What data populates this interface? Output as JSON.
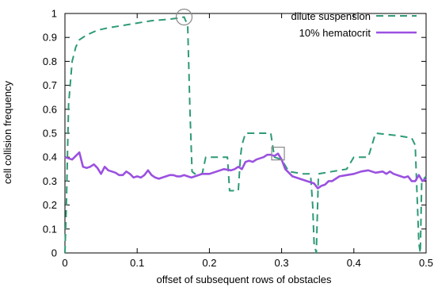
{
  "chart_data": {
    "type": "line",
    "xlabel": "offset of subsequent rows of obstacles",
    "ylabel": "cell collision frequency",
    "xlim": [
      0,
      0.5
    ],
    "ylim": [
      0,
      1
    ],
    "x_ticks": [
      "0",
      "0.1",
      "0.2",
      "0.3",
      "0.4",
      "0.5"
    ],
    "y_ticks": [
      "0",
      "0.1",
      "0.2",
      "0.3",
      "0.4",
      "0.5",
      "0.6",
      "0.7",
      "0.8",
      "0.9",
      "1"
    ],
    "legend_position": "top-right",
    "grid": false,
    "series": [
      {
        "name": "dilute suspension",
        "color": "#2e9a78",
        "style": "dashed",
        "points": [
          [
            0.0,
            0.0
          ],
          [
            0.002,
            0.2
          ],
          [
            0.005,
            0.62
          ],
          [
            0.01,
            0.8
          ],
          [
            0.015,
            0.86
          ],
          [
            0.02,
            0.89
          ],
          [
            0.03,
            0.91
          ],
          [
            0.045,
            0.93
          ],
          [
            0.06,
            0.94
          ],
          [
            0.08,
            0.95
          ],
          [
            0.1,
            0.96
          ],
          [
            0.12,
            0.97
          ],
          [
            0.14,
            0.975
          ],
          [
            0.155,
            0.98
          ],
          [
            0.165,
            0.985
          ],
          [
            0.17,
            0.95
          ],
          [
            0.173,
            0.6
          ],
          [
            0.176,
            0.34
          ],
          [
            0.18,
            0.33
          ],
          [
            0.19,
            0.33
          ],
          [
            0.195,
            0.4
          ],
          [
            0.225,
            0.4
          ],
          [
            0.228,
            0.26
          ],
          [
            0.24,
            0.26
          ],
          [
            0.243,
            0.4
          ],
          [
            0.245,
            0.45
          ],
          [
            0.25,
            0.5
          ],
          [
            0.285,
            0.5
          ],
          [
            0.29,
            0.4
          ],
          [
            0.3,
            0.39
          ],
          [
            0.31,
            0.34
          ],
          [
            0.33,
            0.33
          ],
          [
            0.34,
            0.33
          ],
          [
            0.343,
            0.2
          ],
          [
            0.345,
            0.04
          ],
          [
            0.348,
            0.0
          ],
          [
            0.351,
            0.33
          ],
          [
            0.37,
            0.34
          ],
          [
            0.39,
            0.35
          ],
          [
            0.4,
            0.4
          ],
          [
            0.42,
            0.4
          ],
          [
            0.425,
            0.45
          ],
          [
            0.43,
            0.5
          ],
          [
            0.46,
            0.49
          ],
          [
            0.48,
            0.48
          ],
          [
            0.485,
            0.45
          ],
          [
            0.488,
            0.2
          ],
          [
            0.49,
            0.04
          ],
          [
            0.492,
            0.0
          ],
          [
            0.494,
            0.3
          ],
          [
            0.5,
            0.32
          ]
        ]
      },
      {
        "name": "10% hematocrit",
        "color": "#9b51e0",
        "style": "solid",
        "points": [
          [
            0.0,
            0.4
          ],
          [
            0.01,
            0.39
          ],
          [
            0.02,
            0.42
          ],
          [
            0.025,
            0.36
          ],
          [
            0.03,
            0.355
          ],
          [
            0.035,
            0.36
          ],
          [
            0.04,
            0.37
          ],
          [
            0.045,
            0.355
          ],
          [
            0.05,
            0.33
          ],
          [
            0.055,
            0.36
          ],
          [
            0.06,
            0.345
          ],
          [
            0.065,
            0.34
          ],
          [
            0.07,
            0.335
          ],
          [
            0.075,
            0.325
          ],
          [
            0.08,
            0.325
          ],
          [
            0.085,
            0.34
          ],
          [
            0.09,
            0.33
          ],
          [
            0.095,
            0.315
          ],
          [
            0.1,
            0.32
          ],
          [
            0.105,
            0.315
          ],
          [
            0.11,
            0.325
          ],
          [
            0.115,
            0.345
          ],
          [
            0.12,
            0.325
          ],
          [
            0.125,
            0.315
          ],
          [
            0.13,
            0.31
          ],
          [
            0.135,
            0.315
          ],
          [
            0.14,
            0.32
          ],
          [
            0.145,
            0.325
          ],
          [
            0.15,
            0.325
          ],
          [
            0.155,
            0.32
          ],
          [
            0.16,
            0.32
          ],
          [
            0.165,
            0.325
          ],
          [
            0.17,
            0.32
          ],
          [
            0.175,
            0.315
          ],
          [
            0.18,
            0.32
          ],
          [
            0.19,
            0.33
          ],
          [
            0.2,
            0.33
          ],
          [
            0.21,
            0.34
          ],
          [
            0.215,
            0.345
          ],
          [
            0.22,
            0.35
          ],
          [
            0.23,
            0.345
          ],
          [
            0.235,
            0.35
          ],
          [
            0.24,
            0.36
          ],
          [
            0.245,
            0.35
          ],
          [
            0.25,
            0.38
          ],
          [
            0.255,
            0.385
          ],
          [
            0.26,
            0.38
          ],
          [
            0.265,
            0.39
          ],
          [
            0.27,
            0.395
          ],
          [
            0.275,
            0.4
          ],
          [
            0.28,
            0.41
          ],
          [
            0.285,
            0.41
          ],
          [
            0.29,
            0.405
          ],
          [
            0.295,
            0.415
          ],
          [
            0.3,
            0.39
          ],
          [
            0.305,
            0.35
          ],
          [
            0.31,
            0.335
          ],
          [
            0.315,
            0.32
          ],
          [
            0.32,
            0.315
          ],
          [
            0.325,
            0.31
          ],
          [
            0.33,
            0.305
          ],
          [
            0.335,
            0.3
          ],
          [
            0.34,
            0.295
          ],
          [
            0.345,
            0.29
          ],
          [
            0.35,
            0.27
          ],
          [
            0.355,
            0.28
          ],
          [
            0.36,
            0.285
          ],
          [
            0.365,
            0.3
          ],
          [
            0.37,
            0.3
          ],
          [
            0.375,
            0.31
          ],
          [
            0.38,
            0.32
          ],
          [
            0.39,
            0.325
          ],
          [
            0.4,
            0.33
          ],
          [
            0.41,
            0.34
          ],
          [
            0.42,
            0.345
          ],
          [
            0.43,
            0.335
          ],
          [
            0.44,
            0.34
          ],
          [
            0.445,
            0.33
          ],
          [
            0.45,
            0.34
          ],
          [
            0.455,
            0.33
          ],
          [
            0.46,
            0.325
          ],
          [
            0.465,
            0.32
          ],
          [
            0.47,
            0.315
          ],
          [
            0.475,
            0.32
          ],
          [
            0.48,
            0.3
          ],
          [
            0.485,
            0.3
          ],
          [
            0.49,
            0.325
          ],
          [
            0.495,
            0.3
          ],
          [
            0.5,
            0.31
          ]
        ]
      }
    ],
    "markers": [
      {
        "shape": "circle",
        "x": 0.165,
        "y": 0.985,
        "color": "#888888"
      },
      {
        "shape": "square",
        "x": 0.295,
        "y": 0.415,
        "color": "#888888"
      }
    ]
  }
}
